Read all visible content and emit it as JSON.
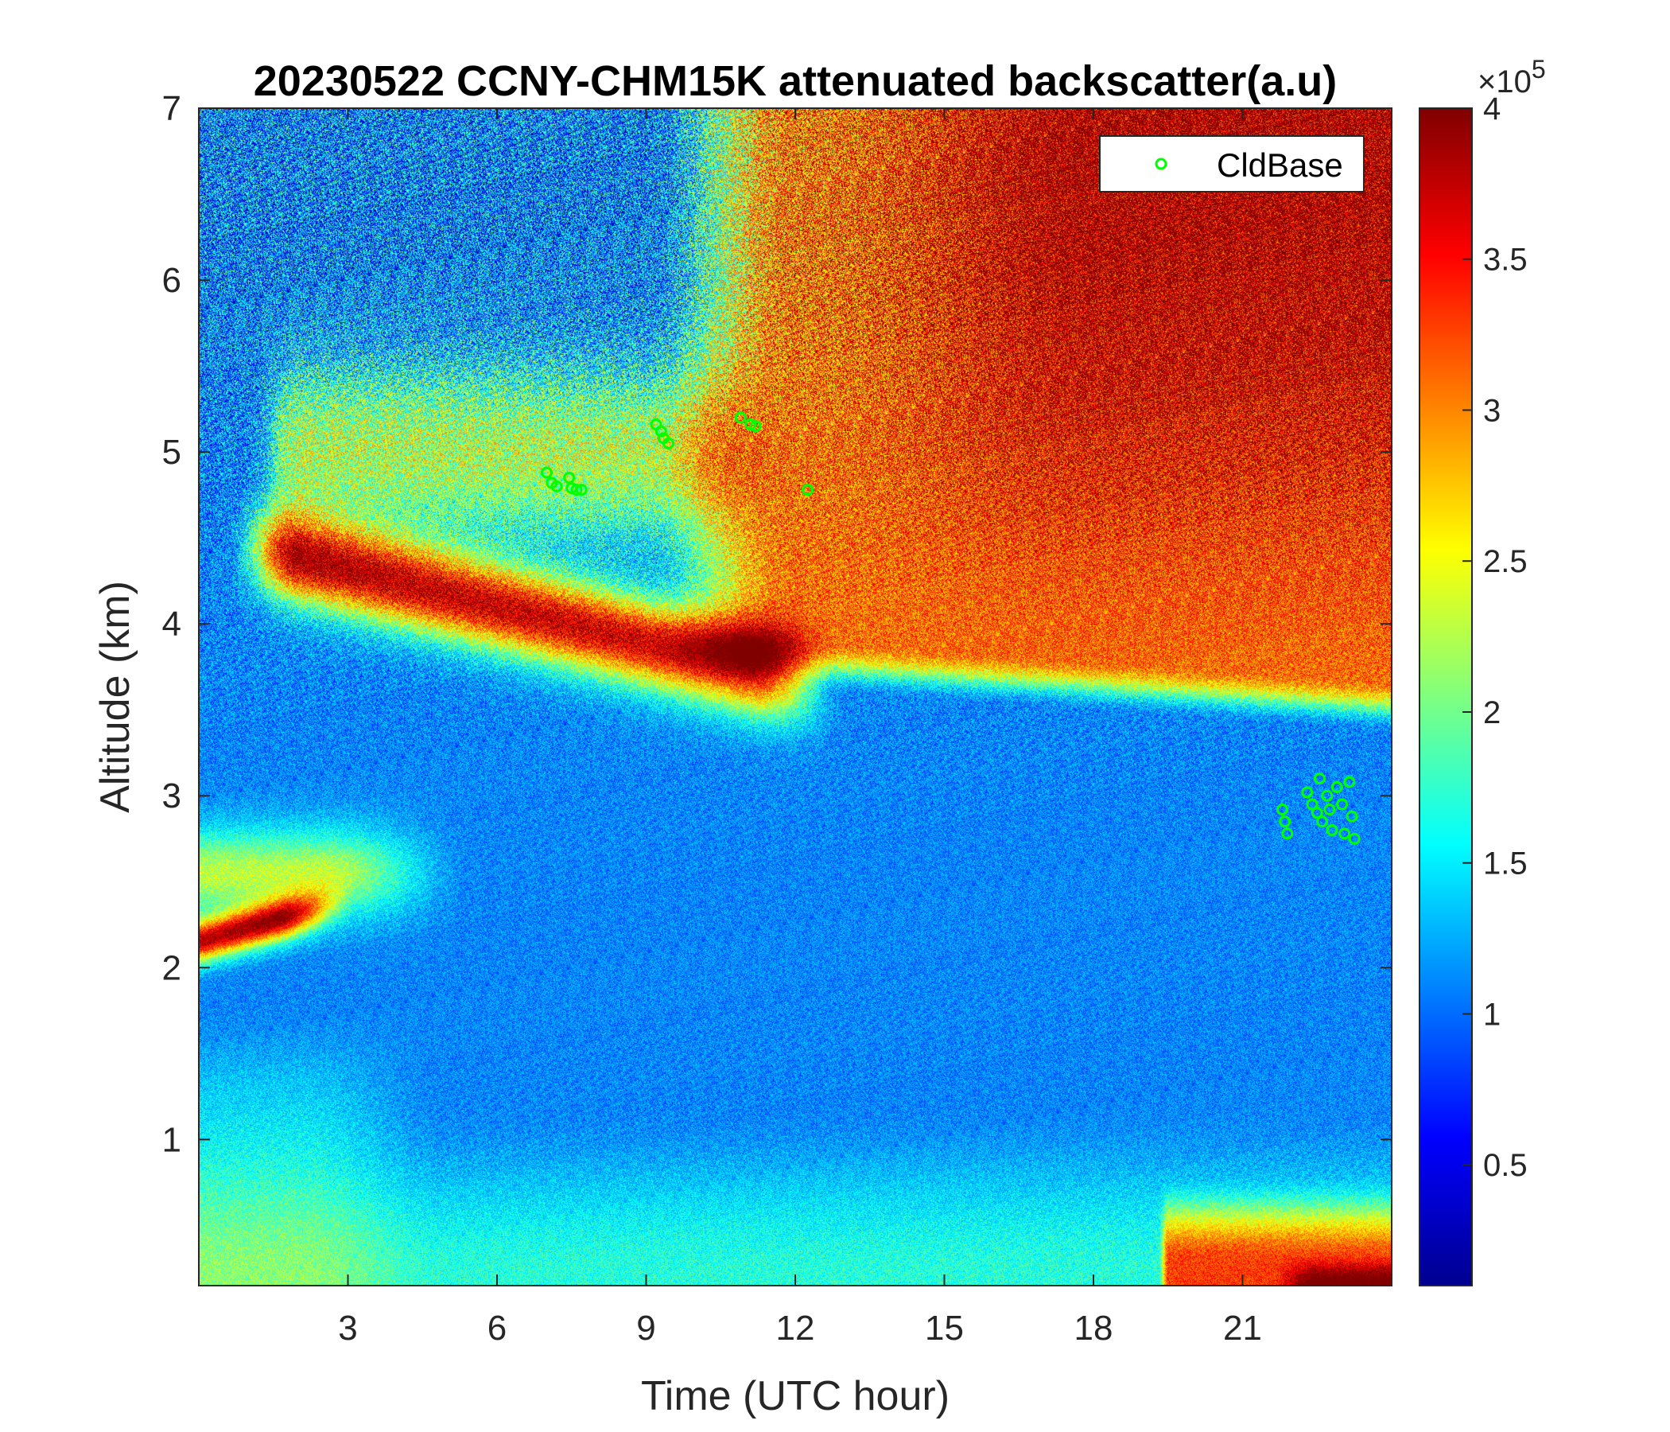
{
  "chart_data": {
    "type": "heatmap",
    "title": "20230522 CCNY-CHM15K attenuated backscatter(a.u)",
    "xlabel": "Time (UTC hour)",
    "ylabel": "Altitude (km)",
    "xlim": [
      0,
      24
    ],
    "ylim": [
      0.15,
      7
    ],
    "x_ticks": [
      3,
      6,
      9,
      12,
      15,
      18,
      21
    ],
    "y_ticks": [
      1,
      2,
      3,
      4,
      5,
      6,
      7
    ],
    "colorbar": {
      "colormap": "jet",
      "range": [
        10000,
        400000
      ],
      "exponent_label": "×10",
      "exponent_power": "5",
      "ticks": [
        0.5,
        1,
        1.5,
        2,
        2.5,
        3,
        3.5,
        4
      ]
    },
    "legend": {
      "position": "top-right",
      "entries": [
        {
          "name": "CldBase",
          "color": "#00ff00",
          "marker": "circle"
        }
      ]
    },
    "cloud_base": {
      "name": "CldBase",
      "color": "#00ff00",
      "points": [
        {
          "x": 7.0,
          "y": 4.88
        },
        {
          "x": 7.1,
          "y": 4.82
        },
        {
          "x": 7.2,
          "y": 4.8
        },
        {
          "x": 7.45,
          "y": 4.85
        },
        {
          "x": 7.5,
          "y": 4.79
        },
        {
          "x": 7.6,
          "y": 4.78
        },
        {
          "x": 7.7,
          "y": 4.78
        },
        {
          "x": 9.2,
          "y": 5.16
        },
        {
          "x": 9.3,
          "y": 5.12
        },
        {
          "x": 9.35,
          "y": 5.08
        },
        {
          "x": 9.45,
          "y": 5.05
        },
        {
          "x": 10.9,
          "y": 5.2
        },
        {
          "x": 11.1,
          "y": 5.16
        },
        {
          "x": 11.2,
          "y": 5.15
        },
        {
          "x": 12.25,
          "y": 4.78
        },
        {
          "x": 21.8,
          "y": 2.92
        },
        {
          "x": 21.85,
          "y": 2.85
        },
        {
          "x": 21.9,
          "y": 2.78
        },
        {
          "x": 22.3,
          "y": 3.02
        },
        {
          "x": 22.4,
          "y": 2.95
        },
        {
          "x": 22.5,
          "y": 2.9
        },
        {
          "x": 22.55,
          "y": 3.1
        },
        {
          "x": 22.6,
          "y": 2.85
        },
        {
          "x": 22.7,
          "y": 3.0
        },
        {
          "x": 22.75,
          "y": 2.92
        },
        {
          "x": 22.8,
          "y": 2.8
        },
        {
          "x": 22.9,
          "y": 3.05
        },
        {
          "x": 23.0,
          "y": 2.95
        },
        {
          "x": 23.05,
          "y": 2.78
        },
        {
          "x": 23.15,
          "y": 3.08
        },
        {
          "x": 23.2,
          "y": 2.88
        },
        {
          "x": 23.25,
          "y": 2.75
        }
      ]
    },
    "field_description": {
      "features": [
        {
          "x_range": [
            0,
            2.8
          ],
          "y_range": [
            1.9,
            2.4
          ],
          "level": 3.8
        },
        {
          "x_range": [
            1,
            12
          ],
          "y_range": [
            4.0,
            5.6
          ],
          "level": 3.6
        },
        {
          "x_range": [
            10,
            24
          ],
          "y_range": [
            3.7,
            7.0
          ],
          "level": 3.2
        },
        {
          "x_range": [
            19.5,
            24
          ],
          "y_range": [
            0.15,
            0.8
          ],
          "level": 2.6
        },
        {
          "x_range": [
            0,
            8
          ],
          "y_range": [
            0.15,
            1.8
          ],
          "level": 1.5
        }
      ]
    }
  }
}
